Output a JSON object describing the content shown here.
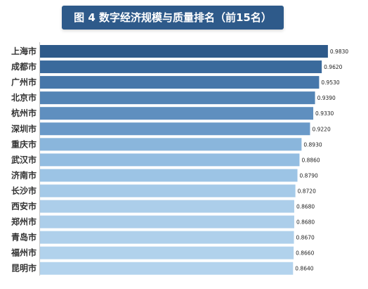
{
  "title": "图 4  数字经济规模与质量排名（前15名）",
  "chart_data": {
    "type": "bar",
    "orientation": "horizontal",
    "title": "图 4  数字经济规模与质量排名（前15名）",
    "categories": [
      "上海市",
      "成都市",
      "广州市",
      "北京市",
      "杭州市",
      "深圳市",
      "重庆市",
      "武汉市",
      "济南市",
      "长沙市",
      "西安市",
      "郑州市",
      "青岛市",
      "福州市",
      "昆明市"
    ],
    "values": [
      0.983,
      0.962,
      0.953,
      0.939,
      0.933,
      0.922,
      0.893,
      0.886,
      0.879,
      0.872,
      0.868,
      0.868,
      0.867,
      0.866,
      0.864
    ],
    "value_labels": [
      "0.9830",
      "0.9620",
      "0.9530",
      "0.9390",
      "0.9330",
      "0.9220",
      "0.8930",
      "0.8860",
      "0.8790",
      "0.8720",
      "0.8680",
      "0.8680",
      "0.8670",
      "0.8660",
      "0.8640"
    ],
    "bar_colors": [
      "#2e5a8a",
      "#3a6a9c",
      "#4677aa",
      "#5384b5",
      "#5f8fbf",
      "#6a99c8",
      "#8ab6dc",
      "#93bde1",
      "#9cc4e5",
      "#a5cae8",
      "#acceea",
      "#acceea",
      "#afd0eb",
      "#b1d2ec",
      "#b3d3ed"
    ],
    "xlim": [
      0,
      1.0
    ],
    "grid": false,
    "legend": "none"
  }
}
